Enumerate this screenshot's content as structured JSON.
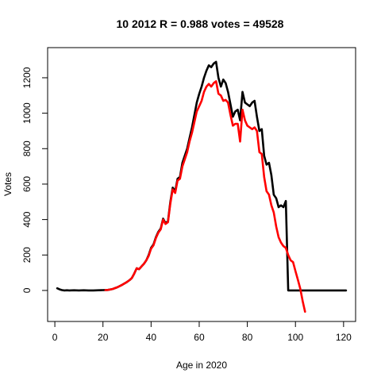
{
  "chart_data": {
    "type": "line",
    "title": "10 2012 R = 0.988 votes = 49528",
    "xlabel": "Age in 2020",
    "ylabel": "Votes",
    "xlim": [
      -3,
      125
    ],
    "ylim": [
      -175,
      1370
    ],
    "xticks": [
      0,
      20,
      40,
      60,
      80,
      100,
      120
    ],
    "yticks": [
      0,
      200,
      400,
      600,
      800,
      1000,
      1200
    ],
    "grid": false,
    "series": [
      {
        "color": "#000000",
        "points": [
          [
            1,
            12
          ],
          [
            2,
            6
          ],
          [
            3,
            2
          ],
          [
            4,
            0
          ],
          [
            5,
            1
          ],
          [
            6,
            0
          ],
          [
            8,
            1
          ],
          [
            10,
            0
          ],
          [
            12,
            1
          ],
          [
            14,
            0
          ],
          [
            16,
            0
          ],
          [
            18,
            1
          ],
          [
            20,
            2
          ],
          [
            22,
            3
          ],
          [
            24,
            8
          ],
          [
            26,
            18
          ],
          [
            28,
            32
          ],
          [
            30,
            48
          ],
          [
            31,
            58
          ],
          [
            32,
            70
          ],
          [
            33,
            95
          ],
          [
            34,
            125
          ],
          [
            35,
            120
          ],
          [
            36,
            135
          ],
          [
            37,
            150
          ],
          [
            38,
            170
          ],
          [
            39,
            200
          ],
          [
            40,
            240
          ],
          [
            41,
            260
          ],
          [
            42,
            300
          ],
          [
            43,
            330
          ],
          [
            44,
            350
          ],
          [
            45,
            405
          ],
          [
            46,
            380
          ],
          [
            47,
            390
          ],
          [
            48,
            500
          ],
          [
            49,
            580
          ],
          [
            50,
            560
          ],
          [
            51,
            630
          ],
          [
            52,
            640
          ],
          [
            53,
            720
          ],
          [
            54,
            760
          ],
          [
            55,
            800
          ],
          [
            56,
            860
          ],
          [
            57,
            920
          ],
          [
            58,
            990
          ],
          [
            59,
            1060
          ],
          [
            60,
            1110
          ],
          [
            61,
            1150
          ],
          [
            62,
            1200
          ],
          [
            63,
            1240
          ],
          [
            64,
            1270
          ],
          [
            65,
            1260
          ],
          [
            66,
            1280
          ],
          [
            67,
            1290
          ],
          [
            68,
            1200
          ],
          [
            69,
            1150
          ],
          [
            70,
            1190
          ],
          [
            71,
            1170
          ],
          [
            72,
            1120
          ],
          [
            73,
            1050
          ],
          [
            74,
            980
          ],
          [
            75,
            1010
          ],
          [
            76,
            1020
          ],
          [
            77,
            960
          ],
          [
            78,
            1120
          ],
          [
            79,
            1060
          ],
          [
            80,
            1050
          ],
          [
            81,
            1040
          ],
          [
            82,
            1060
          ],
          [
            83,
            1070
          ],
          [
            84,
            980
          ],
          [
            85,
            900
          ],
          [
            86,
            910
          ],
          [
            87,
            760
          ],
          [
            88,
            710
          ],
          [
            89,
            720
          ],
          [
            90,
            650
          ],
          [
            91,
            540
          ],
          [
            92,
            520
          ],
          [
            93,
            470
          ],
          [
            94,
            480
          ],
          [
            95,
            470
          ],
          [
            96,
            505
          ],
          [
            97,
            0
          ],
          [
            100,
            0
          ],
          [
            105,
            0
          ],
          [
            110,
            0
          ],
          [
            115,
            0
          ],
          [
            121,
            0
          ]
        ]
      },
      {
        "color": "#ff0000",
        "points": [
          [
            21,
            2
          ],
          [
            22,
            3
          ],
          [
            24,
            8
          ],
          [
            26,
            18
          ],
          [
            28,
            32
          ],
          [
            30,
            48
          ],
          [
            31,
            58
          ],
          [
            32,
            70
          ],
          [
            33,
            95
          ],
          [
            34,
            125
          ],
          [
            35,
            120
          ],
          [
            36,
            135
          ],
          [
            37,
            150
          ],
          [
            38,
            170
          ],
          [
            39,
            195
          ],
          [
            40,
            235
          ],
          [
            41,
            255
          ],
          [
            42,
            295
          ],
          [
            43,
            325
          ],
          [
            44,
            345
          ],
          [
            45,
            400
          ],
          [
            46,
            375
          ],
          [
            47,
            385
          ],
          [
            48,
            490
          ],
          [
            49,
            570
          ],
          [
            50,
            550
          ],
          [
            51,
            620
          ],
          [
            52,
            630
          ],
          [
            53,
            700
          ],
          [
            54,
            740
          ],
          [
            55,
            780
          ],
          [
            56,
            840
          ],
          [
            57,
            890
          ],
          [
            58,
            950
          ],
          [
            59,
            1010
          ],
          [
            60,
            1040
          ],
          [
            61,
            1070
          ],
          [
            62,
            1120
          ],
          [
            63,
            1150
          ],
          [
            64,
            1165
          ],
          [
            65,
            1150
          ],
          [
            66,
            1170
          ],
          [
            67,
            1180
          ],
          [
            68,
            1110
          ],
          [
            69,
            1100
          ],
          [
            70,
            1070
          ],
          [
            71,
            1075
          ],
          [
            72,
            1060
          ],
          [
            73,
            990
          ],
          [
            74,
            930
          ],
          [
            75,
            940
          ],
          [
            76,
            940
          ],
          [
            77,
            840
          ],
          [
            78,
            1020
          ],
          [
            79,
            960
          ],
          [
            80,
            930
          ],
          [
            81,
            920
          ],
          [
            82,
            910
          ],
          [
            83,
            920
          ],
          [
            84,
            900
          ],
          [
            85,
            780
          ],
          [
            86,
            770
          ],
          [
            87,
            640
          ],
          [
            88,
            560
          ],
          [
            89,
            540
          ],
          [
            90,
            480
          ],
          [
            91,
            440
          ],
          [
            92,
            360
          ],
          [
            93,
            300
          ],
          [
            94,
            270
          ],
          [
            95,
            250
          ],
          [
            96,
            240
          ],
          [
            97,
            200
          ],
          [
            98,
            170
          ],
          [
            99,
            160
          ],
          [
            100,
            110
          ],
          [
            101,
            60
          ],
          [
            102,
            10
          ],
          [
            103,
            -60
          ],
          [
            104,
            -120
          ]
        ]
      }
    ]
  }
}
